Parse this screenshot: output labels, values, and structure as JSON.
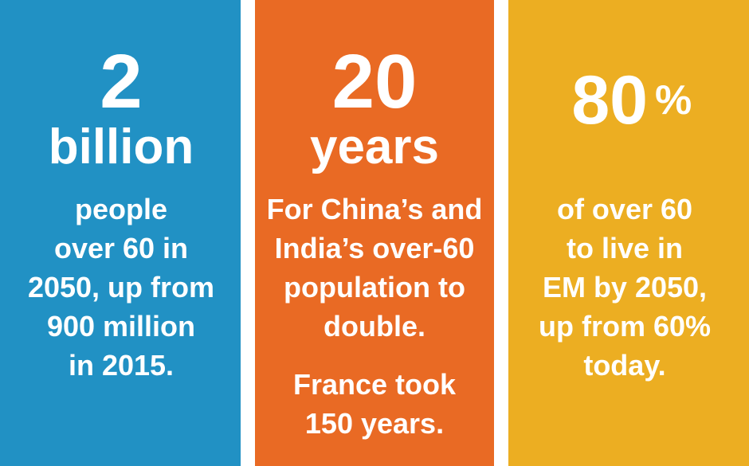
{
  "panels": [
    {
      "big": "2",
      "unit": "billion",
      "paragraphs": [
        [
          "people",
          "over 60 in",
          "2050, up from",
          "900 million",
          "in 2015."
        ]
      ]
    },
    {
      "big": "20",
      "unit": "years",
      "paragraphs": [
        [
          "For China’s and",
          "India’s over-60",
          "population to",
          "double."
        ],
        [
          "France took",
          "150 years."
        ]
      ]
    },
    {
      "big": "80",
      "unit": "%",
      "paragraphs": [
        [
          "of over 60",
          "to live in",
          "EM by 2050,",
          "up from 60%",
          "today."
        ]
      ]
    }
  ]
}
